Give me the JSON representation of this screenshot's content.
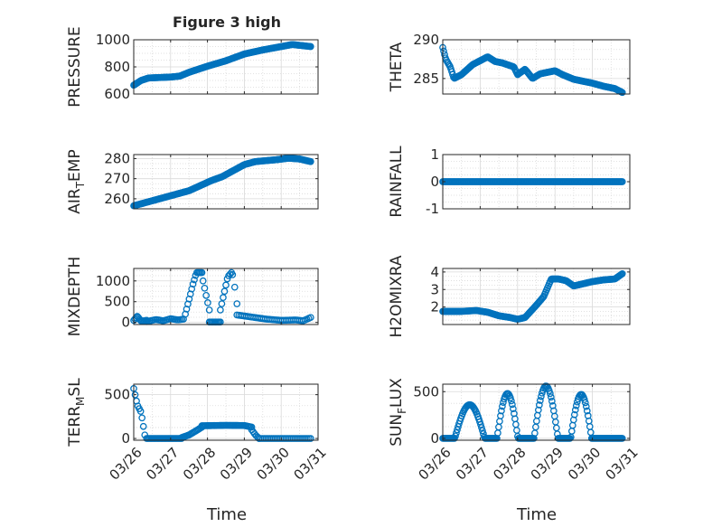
{
  "figure": {
    "title": "Figure 3 high",
    "x_tick_labels": [
      "03/26",
      "03/27",
      "03/28",
      "03/29",
      "03/30",
      "03/31"
    ],
    "x_axis_label": "Time",
    "marker_color": "#0072BD"
  },
  "chart_data": [
    {
      "type": "scatter",
      "ylabel": "PRESSURE",
      "ylim": [
        600,
        1000
      ],
      "yticks": [
        600,
        800,
        1000
      ],
      "xlim": [
        0,
        5
      ],
      "grid": true,
      "segments": [
        {
          "x0": 0.0,
          "x1": 4.8,
          "n": 200,
          "kind": "poly",
          "points": [
            [
              0,
              665
            ],
            [
              0.2,
              700
            ],
            [
              0.4,
              718
            ],
            [
              1.0,
              725
            ],
            [
              1.25,
              732
            ],
            [
              1.5,
              760
            ],
            [
              2.0,
              805
            ],
            [
              2.5,
              845
            ],
            [
              3.0,
              895
            ],
            [
              3.5,
              925
            ],
            [
              4.0,
              950
            ],
            [
              4.3,
              965
            ],
            [
              4.8,
              950
            ]
          ]
        }
      ]
    },
    {
      "type": "scatter",
      "ylabel": "THETA",
      "ylim": [
        283,
        290
      ],
      "yticks": [
        285,
        290
      ],
      "xlim": [
        0,
        5
      ],
      "grid": true,
      "segments": [
        {
          "x0": 0.0,
          "x1": 4.8,
          "n": 200,
          "kind": "poly",
          "points": [
            [
              0,
              289
            ],
            [
              0.08,
              287.5
            ],
            [
              0.2,
              286.5
            ],
            [
              0.3,
              285
            ],
            [
              0.5,
              285.5
            ],
            [
              0.8,
              286.8
            ],
            [
              1.0,
              287.3
            ],
            [
              1.2,
              287.8
            ],
            [
              1.4,
              287.2
            ],
            [
              1.6,
              287
            ],
            [
              1.9,
              286.5
            ],
            [
              2.0,
              285.5
            ],
            [
              2.2,
              286.2
            ],
            [
              2.4,
              285
            ],
            [
              2.6,
              285.6
            ],
            [
              2.8,
              285.8
            ],
            [
              3.0,
              286
            ],
            [
              3.2,
              285.5
            ],
            [
              3.5,
              284.9
            ],
            [
              3.8,
              284.6
            ],
            [
              4.0,
              284.4
            ],
            [
              4.3,
              284
            ],
            [
              4.6,
              283.7
            ],
            [
              4.8,
              283.2
            ]
          ]
        }
      ]
    },
    {
      "type": "scatter",
      "ylabel": "AIR_TEMP",
      "ylim": [
        255,
        282
      ],
      "yticks": [
        260,
        270,
        280
      ],
      "xlim": [
        0,
        5
      ],
      "grid": true,
      "segments": [
        {
          "x0": 0.0,
          "x1": 4.8,
          "n": 200,
          "kind": "poly",
          "points": [
            [
              0,
              256.5
            ],
            [
              0.3,
              258
            ],
            [
              0.6,
              259.5
            ],
            [
              0.9,
              261
            ],
            [
              1.2,
              262.5
            ],
            [
              1.5,
              264
            ],
            [
              1.8,
              266.5
            ],
            [
              2.1,
              269
            ],
            [
              2.4,
              271
            ],
            [
              2.7,
              274
            ],
            [
              3.0,
              277
            ],
            [
              3.3,
              278.5
            ],
            [
              3.6,
              279
            ],
            [
              3.9,
              279.5
            ],
            [
              4.2,
              280.2
            ],
            [
              4.5,
              279.8
            ],
            [
              4.8,
              278.5
            ]
          ]
        }
      ]
    },
    {
      "type": "scatter",
      "ylabel": "RAINFALL",
      "ylim": [
        -1,
        1
      ],
      "yticks": [
        -1,
        0,
        1
      ],
      "xlim": [
        0,
        5
      ],
      "grid": true,
      "segments": [
        {
          "x0": 0.0,
          "x1": 4.8,
          "n": 160,
          "kind": "poly",
          "points": [
            [
              0,
              0
            ],
            [
              4.8,
              0
            ]
          ]
        }
      ]
    },
    {
      "type": "scatter",
      "ylabel": "MIXDEPTH",
      "ylim": [
        -50,
        1300
      ],
      "yticks": [
        0,
        500,
        1000
      ],
      "xlim": [
        0,
        5
      ],
      "grid": true,
      "segments": [
        {
          "x0": 0.0,
          "x1": 0.35,
          "n": 12,
          "kind": "poly",
          "points": [
            [
              0,
              50
            ],
            [
              0.1,
              150
            ],
            [
              0.2,
              30
            ],
            [
              0.35,
              50
            ]
          ]
        },
        {
          "x0": 0.35,
          "x1": 1.35,
          "n": 24,
          "kind": "poly",
          "points": [
            [
              0.35,
              20
            ],
            [
              0.6,
              70
            ],
            [
              0.8,
              40
            ],
            [
              1.0,
              90
            ],
            [
              1.2,
              60
            ],
            [
              1.35,
              80
            ]
          ]
        },
        {
          "x0": 1.4,
          "x1": 1.85,
          "n": 14,
          "kind": "poly",
          "points": [
            [
              1.4,
              200
            ],
            [
              1.5,
              550
            ],
            [
              1.6,
              900
            ],
            [
              1.7,
              1200
            ],
            [
              1.85,
              1200
            ]
          ]
        },
        {
          "x0": 1.88,
          "x1": 2.05,
          "n": 5,
          "kind": "poly",
          "points": [
            [
              1.88,
              1000
            ],
            [
              2.05,
              300
            ]
          ]
        },
        {
          "x0": 2.05,
          "x1": 2.35,
          "n": 10,
          "kind": "poly",
          "points": [
            [
              2.05,
              10
            ],
            [
              2.35,
              10
            ]
          ]
        },
        {
          "x0": 2.35,
          "x1": 2.65,
          "n": 9,
          "kind": "poly",
          "points": [
            [
              2.35,
              300
            ],
            [
              2.45,
              700
            ],
            [
              2.55,
              1100
            ],
            [
              2.65,
              1200
            ]
          ]
        },
        {
          "x0": 2.68,
          "x1": 2.8,
          "n": 3,
          "kind": "poly",
          "points": [
            [
              2.68,
              1150
            ],
            [
              2.74,
              850
            ],
            [
              2.8,
              450
            ]
          ]
        },
        {
          "x0": 2.8,
          "x1": 4.8,
          "n": 40,
          "kind": "poly",
          "points": [
            [
              2.8,
              180
            ],
            [
              3.2,
              130
            ],
            [
              3.6,
              80
            ],
            [
              4.0,
              50
            ],
            [
              4.4,
              60
            ],
            [
              4.6,
              40
            ],
            [
              4.8,
              120
            ]
          ]
        }
      ]
    },
    {
      "type": "scatter",
      "ylabel": "H2OMIXRA",
      "ylim": [
        1,
        4.2
      ],
      "yticks": [
        2,
        3,
        4
      ],
      "xlim": [
        0,
        5
      ],
      "grid": true,
      "segments": [
        {
          "x0": 0.0,
          "x1": 4.8,
          "n": 200,
          "kind": "poly",
          "points": [
            [
              0,
              1.75
            ],
            [
              0.5,
              1.75
            ],
            [
              0.9,
              1.8
            ],
            [
              1.2,
              1.7
            ],
            [
              1.5,
              1.5
            ],
            [
              1.8,
              1.4
            ],
            [
              2.0,
              1.3
            ],
            [
              2.2,
              1.4
            ],
            [
              2.5,
              2.1
            ],
            [
              2.7,
              2.6
            ],
            [
              2.9,
              3.6
            ],
            [
              3.1,
              3.6
            ],
            [
              3.3,
              3.5
            ],
            [
              3.5,
              3.2
            ],
            [
              3.7,
              3.3
            ],
            [
              4.0,
              3.45
            ],
            [
              4.3,
              3.55
            ],
            [
              4.6,
              3.6
            ],
            [
              4.8,
              3.9
            ]
          ]
        }
      ]
    },
    {
      "type": "scatter",
      "ylabel": "TERR_MSL",
      "ylim": [
        -20,
        620
      ],
      "yticks": [
        0,
        500
      ],
      "xlim": [
        0,
        5
      ],
      "grid": true,
      "segments": [
        {
          "x0": 0.0,
          "x1": 0.3,
          "n": 9,
          "kind": "poly",
          "points": [
            [
              0,
              570
            ],
            [
              0.1,
              380
            ],
            [
              0.2,
              300
            ],
            [
              0.3,
              40
            ]
          ]
        },
        {
          "x0": 0.35,
          "x1": 1.3,
          "n": 30,
          "kind": "poly",
          "points": [
            [
              0.35,
              0
            ],
            [
              1.3,
              0
            ]
          ]
        },
        {
          "x0": 1.3,
          "x1": 1.85,
          "n": 18,
          "kind": "poly",
          "points": [
            [
              1.3,
              10
            ],
            [
              1.5,
              40
            ],
            [
              1.7,
              90
            ],
            [
              1.85,
              130
            ]
          ]
        },
        {
          "x0": 1.85,
          "x1": 3.2,
          "n": 40,
          "kind": "poly",
          "points": [
            [
              1.85,
              145
            ],
            [
              2.5,
              150
            ],
            [
              3.0,
              148
            ],
            [
              3.2,
              130
            ]
          ]
        },
        {
          "x0": 3.2,
          "x1": 3.4,
          "n": 6,
          "kind": "poly",
          "points": [
            [
              3.2,
              100
            ],
            [
              3.3,
              40
            ],
            [
              3.4,
              0
            ]
          ]
        },
        {
          "x0": 3.4,
          "x1": 4.8,
          "n": 30,
          "kind": "poly",
          "points": [
            [
              3.4,
              0
            ],
            [
              4.8,
              0
            ]
          ]
        }
      ]
    },
    {
      "type": "scatter",
      "ylabel": "SUN_FLUX",
      "ylim": [
        -20,
        580
      ],
      "yticks": [
        0,
        500
      ],
      "xlim": [
        0,
        5
      ],
      "grid": true,
      "segments": [
        {
          "x0": 0.0,
          "x1": 4.8,
          "n": 200,
          "kind": "sun",
          "days": [
            0.72,
            1.73,
            2.76,
            3.7
          ],
          "peaks": [
            360,
            480,
            560,
            470
          ],
          "half": [
            0.4,
            0.28,
            0.32,
            0.28
          ]
        }
      ]
    }
  ]
}
